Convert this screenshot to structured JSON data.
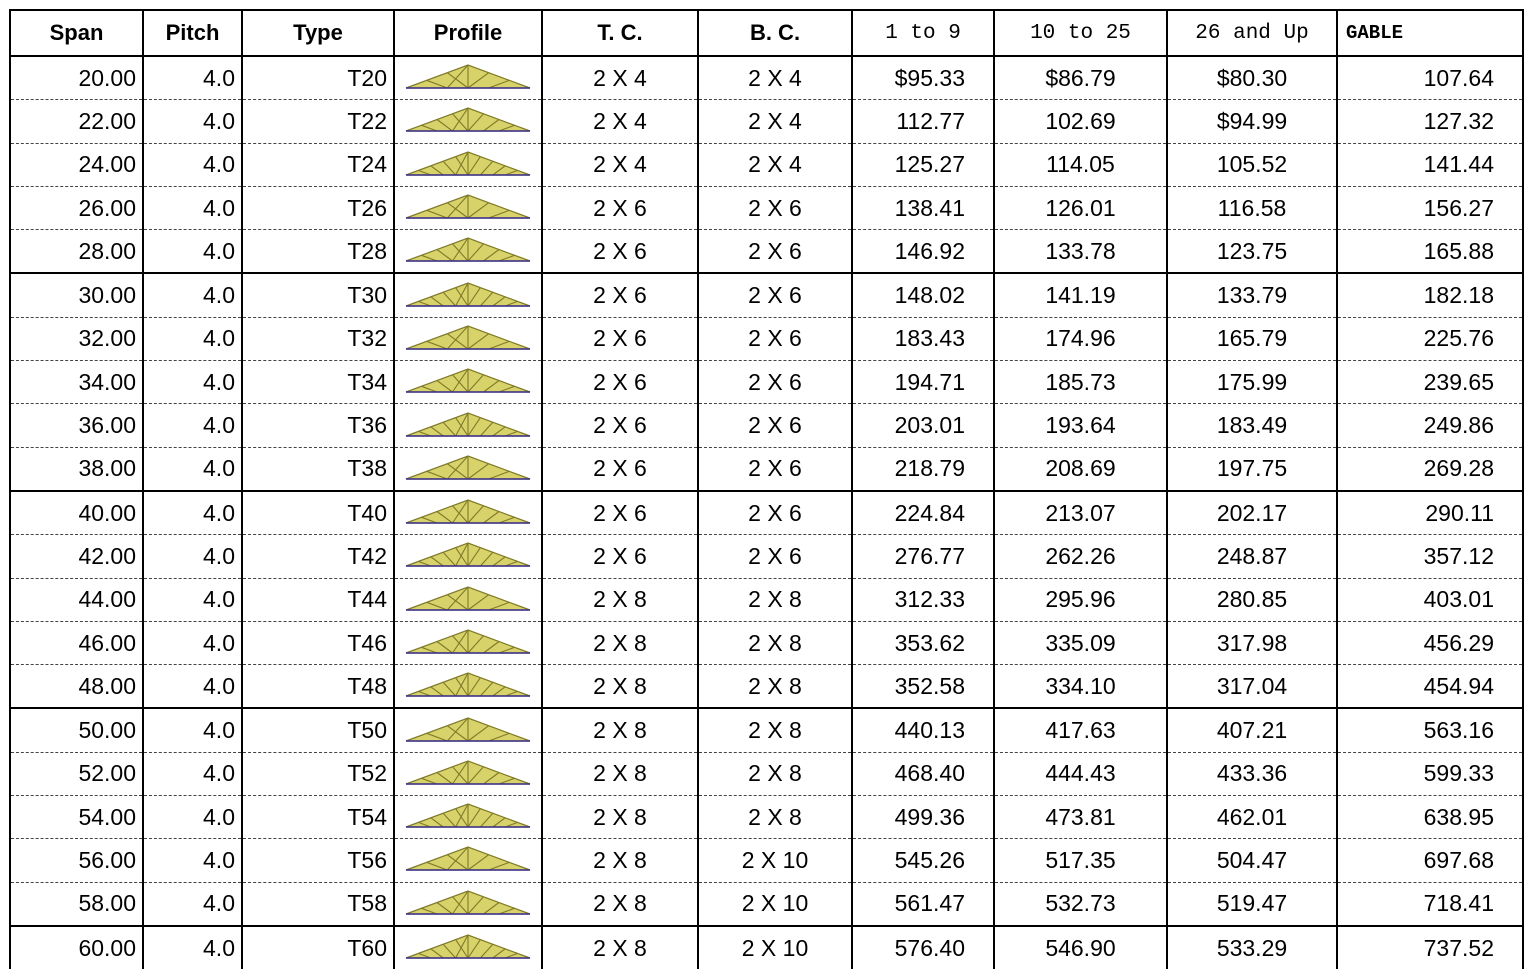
{
  "headers": [
    "Span",
    "Pitch",
    "Type",
    "Profile",
    "T. C.",
    "B. C.",
    "1 to 9",
    "10 to 25",
    "26 and Up",
    "GABLE"
  ],
  "colors": {
    "truss_fill": "#d8d26a",
    "truss_stroke": "#7f7a28",
    "truss_node": "#3a2f8f"
  },
  "rows": [
    {
      "span": "20.00",
      "pitch": "4.0",
      "type": "T20",
      "profile": "truss-profile-icon",
      "tc": "2 X 4",
      "bc": "2 X 4",
      "p1": "$95.33",
      "p2": "$86.79",
      "p3": "$80.30",
      "gable": "107.64"
    },
    {
      "span": "22.00",
      "pitch": "4.0",
      "type": "T22",
      "profile": "truss-profile-icon",
      "tc": "2 X 4",
      "bc": "2 X 4",
      "p1": "112.77",
      "p2": "102.69",
      "p3": "$94.99",
      "gable": "127.32"
    },
    {
      "span": "24.00",
      "pitch": "4.0",
      "type": "T24",
      "profile": "truss-profile-icon",
      "tc": "2 X 4",
      "bc": "2 X 4",
      "p1": "125.27",
      "p2": "114.05",
      "p3": "105.52",
      "gable": "141.44"
    },
    {
      "span": "26.00",
      "pitch": "4.0",
      "type": "T26",
      "profile": "truss-profile-icon",
      "tc": "2 X 6",
      "bc": "2 X 6",
      "p1": "138.41",
      "p2": "126.01",
      "p3": "116.58",
      "gable": "156.27"
    },
    {
      "span": "28.00",
      "pitch": "4.0",
      "type": "T28",
      "profile": "truss-profile-icon",
      "tc": "2 X 6",
      "bc": "2 X 6",
      "p1": "146.92",
      "p2": "133.78",
      "p3": "123.75",
      "gable": "165.88"
    },
    {
      "span": "30.00",
      "pitch": "4.0",
      "type": "T30",
      "profile": "truss-profile-icon",
      "tc": "2 X 6",
      "bc": "2 X 6",
      "p1": "148.02",
      "p2": "141.19",
      "p3": "133.79",
      "gable": "182.18"
    },
    {
      "span": "32.00",
      "pitch": "4.0",
      "type": "T32",
      "profile": "truss-profile-icon",
      "tc": "2 X 6",
      "bc": "2 X 6",
      "p1": "183.43",
      "p2": "174.96",
      "p3": "165.79",
      "gable": "225.76"
    },
    {
      "span": "34.00",
      "pitch": "4.0",
      "type": "T34",
      "profile": "truss-profile-icon",
      "tc": "2 X 6",
      "bc": "2 X 6",
      "p1": "194.71",
      "p2": "185.73",
      "p3": "175.99",
      "gable": "239.65"
    },
    {
      "span": "36.00",
      "pitch": "4.0",
      "type": "T36",
      "profile": "truss-profile-icon",
      "tc": "2 X 6",
      "bc": "2 X 6",
      "p1": "203.01",
      "p2": "193.64",
      "p3": "183.49",
      "gable": "249.86"
    },
    {
      "span": "38.00",
      "pitch": "4.0",
      "type": "T38",
      "profile": "truss-profile-icon",
      "tc": "2 X 6",
      "bc": "2 X 6",
      "p1": "218.79",
      "p2": "208.69",
      "p3": "197.75",
      "gable": "269.28"
    },
    {
      "span": "40.00",
      "pitch": "4.0",
      "type": "T40",
      "profile": "truss-profile-icon",
      "tc": "2 X 6",
      "bc": "2 X 6",
      "p1": "224.84",
      "p2": "213.07",
      "p3": "202.17",
      "gable": "290.11"
    },
    {
      "span": "42.00",
      "pitch": "4.0",
      "type": "T42",
      "profile": "truss-profile-icon",
      "tc": "2 X 6",
      "bc": "2 X 6",
      "p1": "276.77",
      "p2": "262.26",
      "p3": "248.87",
      "gable": "357.12"
    },
    {
      "span": "44.00",
      "pitch": "4.0",
      "type": "T44",
      "profile": "truss-profile-icon",
      "tc": "2 X 8",
      "bc": "2 X 8",
      "p1": "312.33",
      "p2": "295.96",
      "p3": "280.85",
      "gable": "403.01"
    },
    {
      "span": "46.00",
      "pitch": "4.0",
      "type": "T46",
      "profile": "truss-profile-icon",
      "tc": "2 X 8",
      "bc": "2 X 8",
      "p1": "353.62",
      "p2": "335.09",
      "p3": "317.98",
      "gable": "456.29"
    },
    {
      "span": "48.00",
      "pitch": "4.0",
      "type": "T48",
      "profile": "truss-profile-icon",
      "tc": "2 X 8",
      "bc": "2 X 8",
      "p1": "352.58",
      "p2": "334.10",
      "p3": "317.04",
      "gable": "454.94"
    },
    {
      "span": "50.00",
      "pitch": "4.0",
      "type": "T50",
      "profile": "truss-profile-icon",
      "tc": "2 X 8",
      "bc": "2 X 8",
      "p1": "440.13",
      "p2": "417.63",
      "p3": "407.21",
      "gable": "563.16"
    },
    {
      "span": "52.00",
      "pitch": "4.0",
      "type": "T52",
      "profile": "truss-profile-icon",
      "tc": "2 X 8",
      "bc": "2 X 8",
      "p1": "468.40",
      "p2": "444.43",
      "p3": "433.36",
      "gable": "599.33"
    },
    {
      "span": "54.00",
      "pitch": "4.0",
      "type": "T54",
      "profile": "truss-profile-icon",
      "tc": "2 X 8",
      "bc": "2 X 8",
      "p1": "499.36",
      "p2": "473.81",
      "p3": "462.01",
      "gable": "638.95"
    },
    {
      "span": "56.00",
      "pitch": "4.0",
      "type": "T56",
      "profile": "truss-profile-icon",
      "tc": "2 X 8",
      "bc": "2 X 10",
      "p1": "545.26",
      "p2": "517.35",
      "p3": "504.47",
      "gable": "697.68"
    },
    {
      "span": "58.00",
      "pitch": "4.0",
      "type": "T58",
      "profile": "truss-profile-icon",
      "tc": "2 X 8",
      "bc": "2 X 10",
      "p1": "561.47",
      "p2": "532.73",
      "p3": "519.47",
      "gable": "718.41"
    },
    {
      "span": "60.00",
      "pitch": "4.0",
      "type": "T60",
      "profile": "truss-profile-icon",
      "tc": "2 X 8",
      "bc": "2 X 10",
      "p1": "576.40",
      "p2": "546.90",
      "p3": "533.29",
      "gable": "737.52"
    }
  ]
}
